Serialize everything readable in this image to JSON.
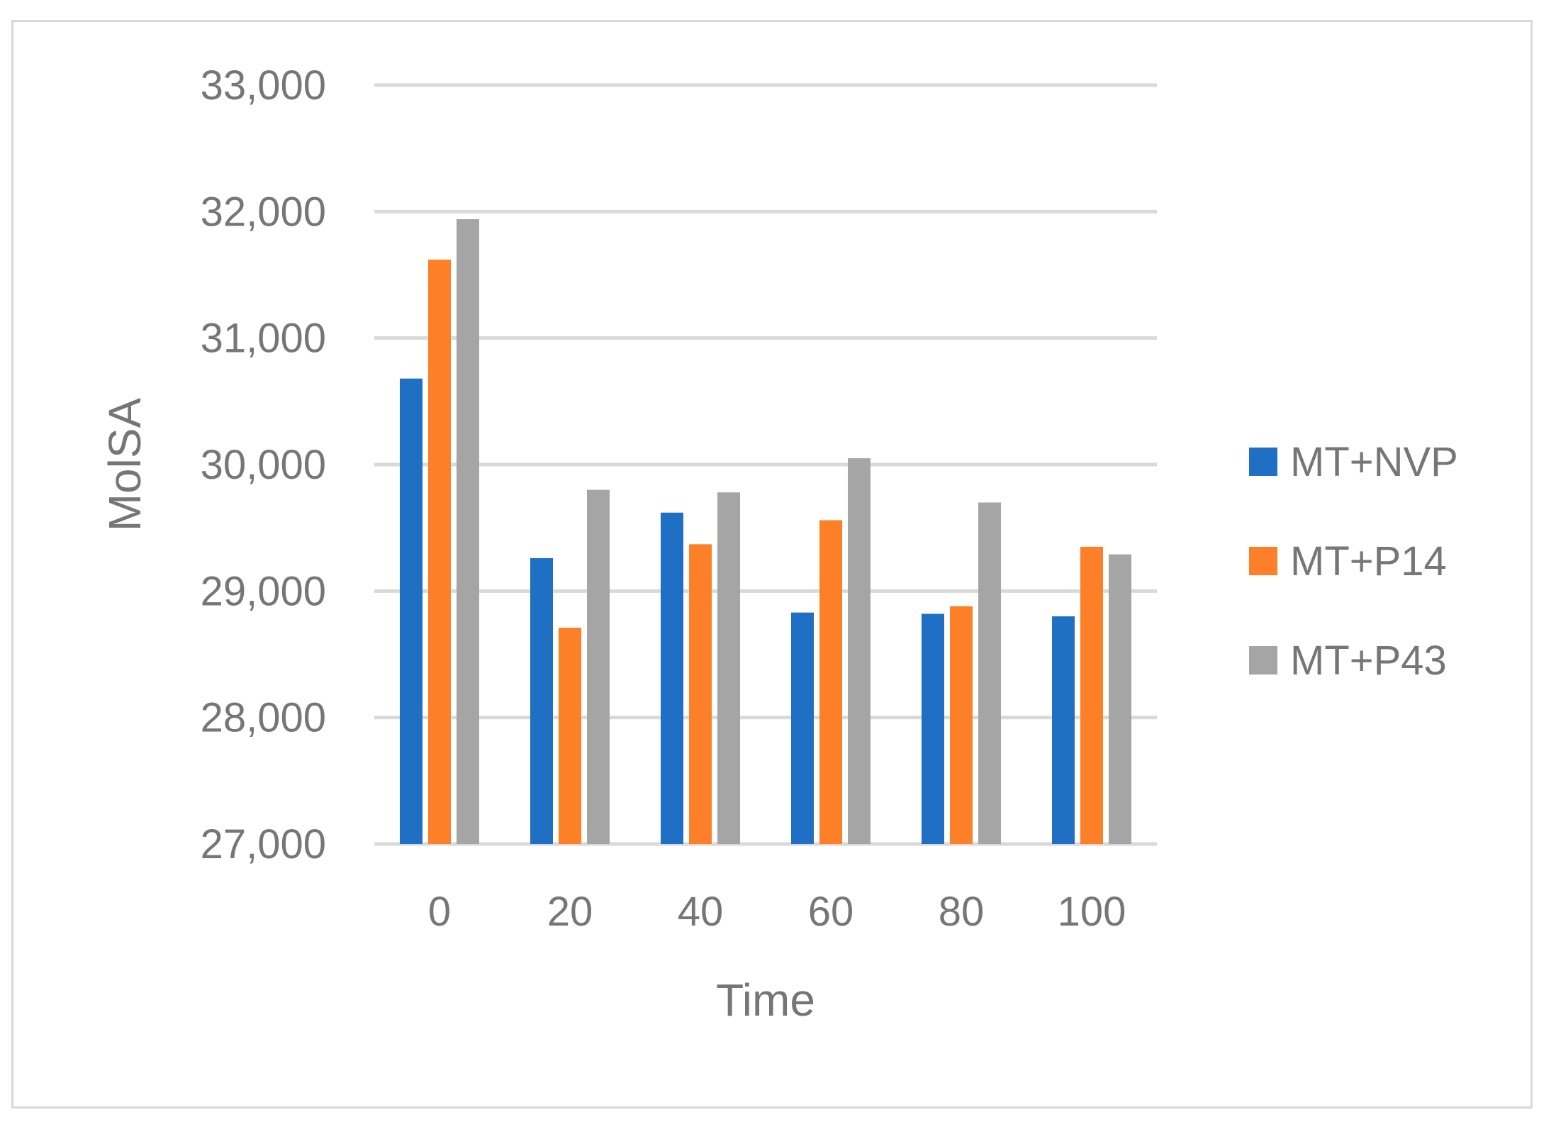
{
  "chart_data": {
    "type": "bar",
    "title": "",
    "xlabel": "Time",
    "ylabel": "MolSA",
    "ylim": [
      27000,
      33000
    ],
    "yticks": [
      27000,
      28000,
      29000,
      30000,
      31000,
      32000,
      33000
    ],
    "ytick_labels": [
      "27,000",
      "28,000",
      "29,000",
      "30,000",
      "31,000",
      "32,000",
      "33,000"
    ],
    "categories": [
      "0",
      "20",
      "40",
      "60",
      "80",
      "100"
    ],
    "grid": true,
    "legend_position": "right",
    "series": [
      {
        "name": "MT+NVP",
        "color": "#1f6fc5",
        "values": [
          30680,
          29260,
          29620,
          28830,
          28820,
          28800
        ]
      },
      {
        "name": "MT+P14",
        "color": "#fd7f28",
        "values": [
          31620,
          28710,
          29370,
          29560,
          28880,
          29350
        ]
      },
      {
        "name": "MT+P43",
        "color": "#a5a5a5",
        "values": [
          31940,
          29800,
          29780,
          30050,
          29700,
          29290
        ]
      }
    ]
  }
}
